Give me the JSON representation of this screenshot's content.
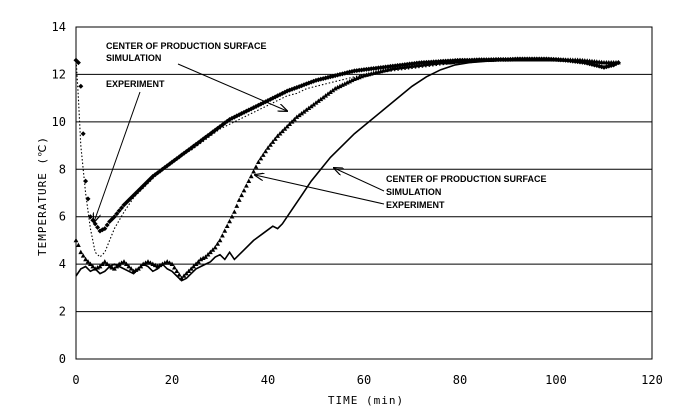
{
  "chart_data": {
    "type": "line",
    "xlabel": "TIME (min)",
    "ylabel": "TEMPERATURE (℃)",
    "xlim": [
      0,
      120
    ],
    "ylim": [
      0,
      14
    ],
    "x_ticks": [
      "0",
      "20",
      "40",
      "60",
      "80",
      "100",
      "120"
    ],
    "y_ticks": [
      "0",
      "2",
      "4",
      "6",
      "8",
      "10",
      "12",
      "14"
    ],
    "grid": "horizontal",
    "series": [
      {
        "style": "diamond-markers",
        "x": [
          0,
          0.5,
          1,
          1.5,
          2,
          3,
          4,
          5,
          6,
          7,
          8,
          10,
          12,
          14,
          16,
          18,
          20,
          22,
          24,
          26,
          28,
          30,
          32,
          34,
          36,
          38,
          40,
          42,
          44,
          46,
          48,
          50,
          52,
          54,
          56,
          58,
          60,
          62,
          64,
          66,
          68,
          70,
          72,
          74,
          76,
          78,
          80,
          82,
          84,
          86,
          88,
          90,
          92,
          94,
          96,
          98,
          100,
          102,
          104,
          106,
          108,
          110,
          112,
          113
        ],
        "y": [
          12.6,
          12.5,
          11.5,
          9.5,
          7.5,
          6.0,
          5.7,
          5.4,
          5.5,
          5.8,
          6.0,
          6.5,
          6.9,
          7.3,
          7.7,
          8.0,
          8.3,
          8.6,
          8.9,
          9.2,
          9.5,
          9.8,
          10.1,
          10.3,
          10.5,
          10.7,
          10.9,
          11.1,
          11.3,
          11.45,
          11.6,
          11.75,
          11.85,
          11.95,
          12.05,
          12.15,
          12.2,
          12.25,
          12.3,
          12.35,
          12.4,
          12.45,
          12.5,
          12.52,
          12.55,
          12.57,
          12.6,
          12.6,
          12.62,
          12.62,
          12.63,
          12.63,
          12.65,
          12.65,
          12.65,
          12.65,
          12.63,
          12.6,
          12.55,
          12.5,
          12.4,
          12.3,
          12.4,
          12.5
        ]
      },
      {
        "style": "dotted-line",
        "x": [
          0,
          0.5,
          1,
          2,
          3,
          4,
          5,
          6,
          7,
          8,
          10,
          12,
          14,
          16,
          18,
          20,
          22,
          24,
          26,
          28,
          30,
          32,
          34,
          36,
          38,
          40,
          42,
          44,
          46,
          48,
          50,
          52,
          54,
          56,
          58,
          60,
          62,
          64,
          66,
          68,
          70,
          72,
          74,
          76,
          78,
          80,
          85,
          90,
          95,
          100,
          105,
          110,
          113
        ],
        "y": [
          12.7,
          11.0,
          9.0,
          7.0,
          5.5,
          4.5,
          4.3,
          4.5,
          5.0,
          5.5,
          6.2,
          6.8,
          7.2,
          7.6,
          8.0,
          8.3,
          8.6,
          8.8,
          9.1,
          9.4,
          9.7,
          9.9,
          10.1,
          10.3,
          10.5,
          10.7,
          10.9,
          11.1,
          11.2,
          11.4,
          11.5,
          11.6,
          11.7,
          11.8,
          11.9,
          12.0,
          12.05,
          12.1,
          12.15,
          12.2,
          12.25,
          12.3,
          12.35,
          12.4,
          12.45,
          12.5,
          12.55,
          12.6,
          12.6,
          12.6,
          12.6,
          12.5,
          12.5
        ]
      },
      {
        "style": "triangle-markers",
        "x": [
          0,
          0.5,
          1,
          2,
          3,
          4,
          5,
          6,
          7,
          8,
          9,
          10,
          11,
          12,
          13,
          14,
          15,
          16,
          17,
          18,
          19,
          20,
          21,
          22,
          23,
          24,
          25,
          26,
          27,
          28,
          29,
          30,
          31,
          32,
          33,
          34,
          36,
          38,
          40,
          42,
          44,
          46,
          48,
          50,
          52,
          54,
          56,
          58,
          60,
          62,
          64,
          66,
          68,
          70,
          72,
          74,
          76,
          78,
          80,
          82,
          84,
          86,
          88,
          90,
          95,
          100,
          105,
          110,
          113
        ],
        "y": [
          5.0,
          4.8,
          4.5,
          4.2,
          4.0,
          3.8,
          3.9,
          4.1,
          3.9,
          3.8,
          4.0,
          4.1,
          3.9,
          3.7,
          3.8,
          4.0,
          4.1,
          4.0,
          3.9,
          4.0,
          4.1,
          4.0,
          3.7,
          3.4,
          3.6,
          3.8,
          4.0,
          4.2,
          4.3,
          4.5,
          4.7,
          5.0,
          5.4,
          5.8,
          6.2,
          6.7,
          7.5,
          8.3,
          8.9,
          9.4,
          9.8,
          10.2,
          10.5,
          10.8,
          11.1,
          11.4,
          11.6,
          11.8,
          11.95,
          12.05,
          12.15,
          12.25,
          12.3,
          12.35,
          12.4,
          12.45,
          12.5,
          12.5,
          12.55,
          12.55,
          12.6,
          12.6,
          12.62,
          12.62,
          12.62,
          12.62,
          12.6,
          12.5,
          12.5
        ]
      },
      {
        "style": "solid-line",
        "x": [
          0,
          1,
          2,
          3,
          4,
          5,
          6,
          7,
          8,
          9,
          10,
          11,
          12,
          13,
          14,
          15,
          16,
          17,
          18,
          19,
          20,
          21,
          22,
          23,
          24,
          25,
          26,
          27,
          28,
          29,
          30,
          31,
          32,
          33,
          35,
          37,
          39,
          41,
          42,
          43,
          45,
          47,
          49,
          51,
          53,
          55,
          58,
          61,
          64,
          67,
          70,
          73,
          76,
          79,
          82,
          85,
          88,
          91,
          95,
          100,
          105,
          110,
          113
        ],
        "y": [
          3.5,
          3.8,
          3.9,
          3.7,
          3.8,
          3.6,
          3.7,
          3.9,
          4.0,
          3.9,
          3.8,
          3.7,
          3.6,
          3.8,
          4.0,
          3.9,
          3.7,
          3.8,
          4.0,
          3.8,
          3.7,
          3.5,
          3.3,
          3.4,
          3.6,
          3.8,
          3.9,
          4.0,
          4.1,
          4.3,
          4.4,
          4.2,
          4.5,
          4.2,
          4.6,
          5.0,
          5.3,
          5.6,
          5.5,
          5.7,
          6.3,
          6.9,
          7.5,
          8.0,
          8.5,
          8.9,
          9.5,
          10.0,
          10.5,
          11.0,
          11.5,
          11.9,
          12.2,
          12.4,
          12.5,
          12.55,
          12.6,
          12.6,
          12.6,
          12.6,
          12.6,
          12.5,
          12.5
        ]
      }
    ],
    "annotations": [
      {
        "id": "anno-top-center",
        "text": "CENTER OF PRODUCTION SURFACE"
      },
      {
        "id": "anno-top-simulation",
        "text": "SIMULATION"
      },
      {
        "id": "anno-top-experiment",
        "text": "EXPERIMENT"
      },
      {
        "id": "anno-bottom-center",
        "text": "CENTER OF PRODUCTION SURFACE"
      },
      {
        "id": "anno-bottom-simulation",
        "text": "SIMULATION"
      },
      {
        "id": "anno-bottom-experiment",
        "text": "EXPERIMENT"
      }
    ]
  }
}
